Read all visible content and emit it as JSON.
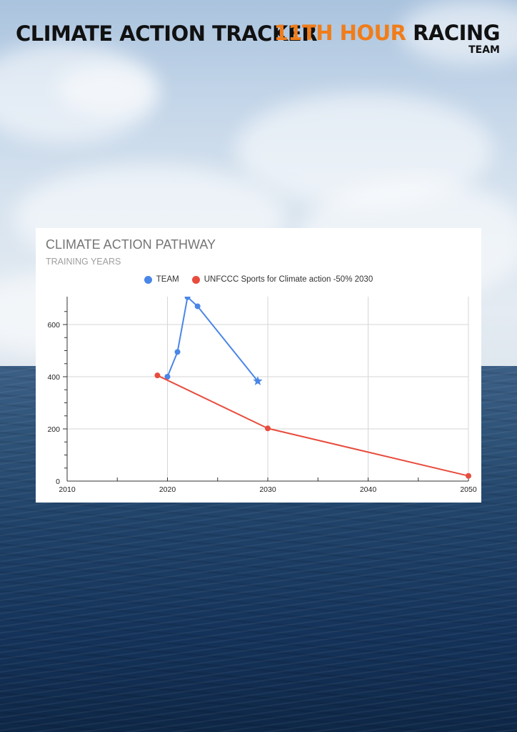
{
  "header": {
    "title": "CLIMATE ACTION TRACKER",
    "brand_accent": "11TH HOUR",
    "brand_main": "RACING",
    "brand_sub": "TEAM"
  },
  "colors": {
    "brand_orange": "#f07d1a",
    "team_series": "#4a86e8",
    "unfccc_series": "#e84c3d"
  },
  "chart_data": {
    "type": "line",
    "title": "CLIMATE ACTION PATHWAY",
    "subtitle": "TRAINING YEARS",
    "xlabel": "",
    "ylabel": "",
    "xlim": [
      2010,
      2050
    ],
    "ylim": [
      0,
      700
    ],
    "x_ticks": [
      "2010",
      "2020",
      "2030",
      "2040",
      "2050"
    ],
    "y_ticks": [
      "0",
      "200",
      "400",
      "600"
    ],
    "grid": true,
    "legend_position": "top",
    "series": [
      {
        "name": "TEAM",
        "color": "#4a86e8",
        "points": [
          {
            "x": 2020,
            "y": 400,
            "marker": "circle"
          },
          {
            "x": 2021,
            "y": 495,
            "marker": "circle"
          },
          {
            "x": 2022,
            "y": 705,
            "marker": "circle"
          },
          {
            "x": 2023,
            "y": 670,
            "marker": "circle"
          },
          {
            "x": 2029,
            "y": 383,
            "marker": "star"
          }
        ]
      },
      {
        "name": "UNFCCC Sports for Climate action -50% 2030",
        "color": "#e84c3d",
        "points": [
          {
            "x": 2019,
            "y": 405,
            "marker": "circle"
          },
          {
            "x": 2030,
            "y": 202,
            "marker": "circle"
          },
          {
            "x": 2050,
            "y": 20,
            "marker": "circle"
          }
        ]
      }
    ]
  }
}
